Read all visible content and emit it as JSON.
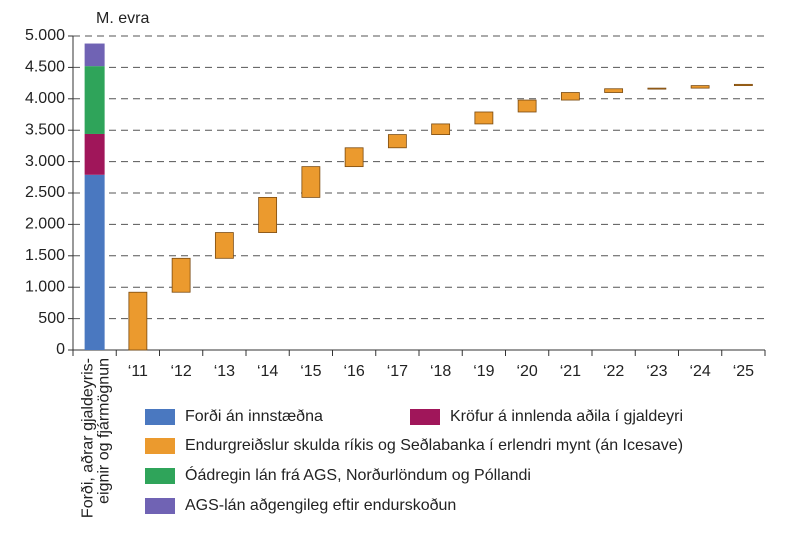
{
  "chart_data": {
    "type": "waterfall",
    "y_label": "M. evra",
    "categories": [
      "Forði, aðrar gjaldeyris-\neignir og fjármögnun",
      "‘11",
      "‘12",
      "‘13",
      "‘14",
      "‘15",
      "‘16",
      "‘17",
      "‘18",
      "‘19",
      "‘20",
      "‘21",
      "‘22",
      "‘23",
      "‘24",
      "‘25"
    ],
    "series": [
      {
        "name": "Forði án innstæðna",
        "color": "#4a78c0",
        "values": [
          2790,
          null,
          null,
          null,
          null,
          null,
          null,
          null,
          null,
          null,
          null,
          null,
          null,
          null,
          null,
          null
        ]
      },
      {
        "name": "Kröfur á innlenda aðila í gjaldeyri",
        "color": "#a0165a",
        "values": [
          650,
          null,
          null,
          null,
          null,
          null,
          null,
          null,
          null,
          null,
          null,
          null,
          null,
          null,
          null,
          null
        ]
      },
      {
        "name": "Endurgreiðslur skulda ríkis og Seðlabanka í erlendri mynt (án Icesave)",
        "color": "#eb9a2e",
        "values": [
          null,
          920,
          540,
          410,
          560,
          490,
          300,
          210,
          170,
          190,
          190,
          120,
          60,
          10,
          40,
          20
        ]
      },
      {
        "name": "Óádregin lán frá AGS, Norðurlöndum og Póllandi",
        "color": "#2fa45a",
        "values": [
          1080,
          null,
          null,
          null,
          null,
          null,
          null,
          null,
          null,
          null,
          null,
          null,
          null,
          null,
          null,
          null
        ]
      },
      {
        "name": "AGS-lán aðgengileg eftir endurskoðun",
        "color": "#7063b4",
        "values": [
          360,
          null,
          null,
          null,
          null,
          null,
          null,
          null,
          null,
          null,
          null,
          null,
          null,
          null,
          null,
          null
        ]
      }
    ],
    "ylim": [
      0,
      5000
    ],
    "yticks": [
      0,
      500,
      {
        "value": 1000,
        "label": "1.000"
      },
      {
        "value": 1500,
        "label": "1.500"
      },
      {
        "value": 2000,
        "label": "2.000"
      },
      {
        "value": 2500,
        "label": "2.500"
      },
      {
        "value": 3000,
        "label": "3.000"
      },
      {
        "value": 3500,
        "label": "3.500"
      },
      {
        "value": 4000,
        "label": "4.000"
      },
      {
        "value": 4500,
        "label": "4.500"
      },
      {
        "value": 5000,
        "label": "5.000"
      }
    ],
    "grid": true
  }
}
